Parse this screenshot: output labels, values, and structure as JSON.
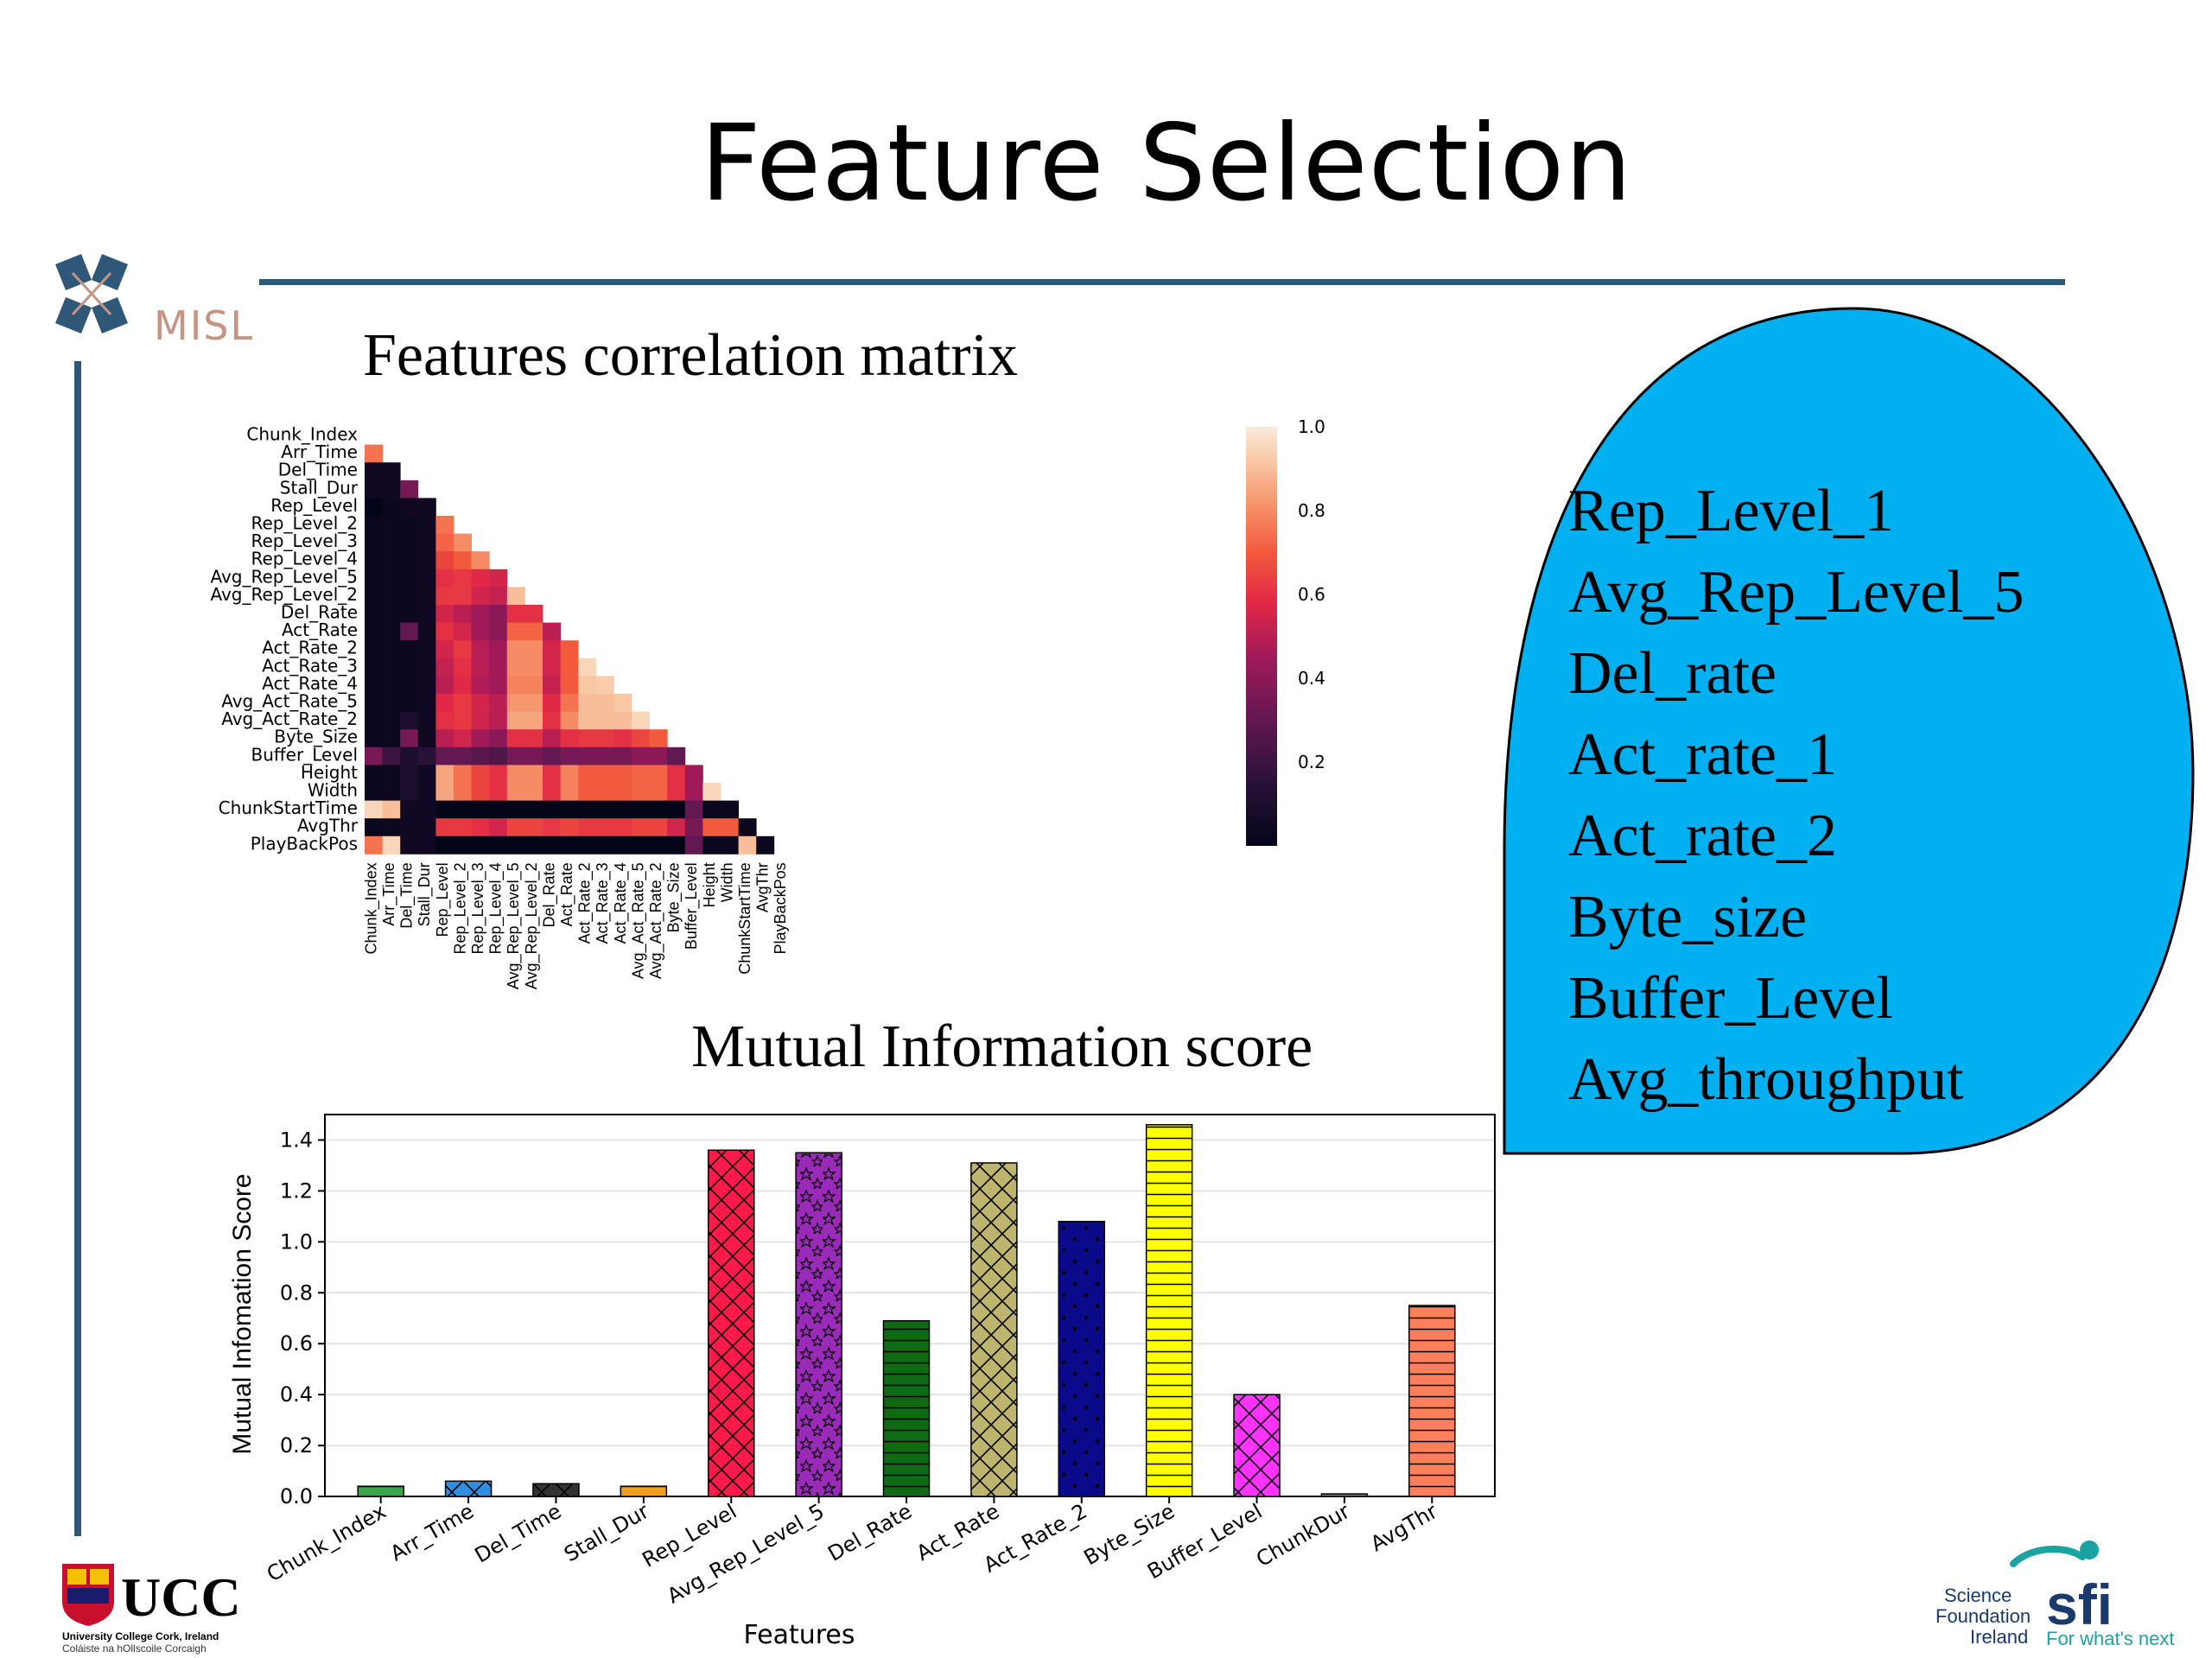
{
  "slide": {
    "title": "Feature Selection",
    "misl_logo_text": "MISL",
    "ucc_logo_text": "UCC",
    "ucc_subtitle_1": "University College Cork, Ireland",
    "ucc_subtitle_2": "Coláiste na hOllscoile Corcaigh",
    "sfi_line1": "Science",
    "sfi_line2": "Foundation",
    "sfi_line3": "Ireland",
    "sfi_mark": "sfi",
    "sfi_tagline": "For what's next",
    "accent_color": "#2f5878"
  },
  "selected_features": {
    "fill_color": "#00b0f0",
    "items": [
      "Rep_Level_1",
      "Avg_Rep_Level_5",
      "Del_rate",
      "Act_rate_1",
      "Act_rate_2",
      "Byte_size",
      "Buffer_Level",
      "Avg_throughput"
    ]
  },
  "chart_data": [
    {
      "type": "heatmap",
      "title": "Features correlation matrix",
      "labels": [
        "Chunk_Index",
        "Arr_Time",
        "Del_Time",
        "Stall_Dur",
        "Rep_Level",
        "Rep_Level_2",
        "Rep_Level_3",
        "Rep_Level_4",
        "Avg_Rep_Level_5",
        "Avg_Rep_Level_2",
        "Del_Rate",
        "Act_Rate",
        "Act_Rate_2",
        "Act_Rate_3",
        "Act_Rate_4",
        "Avg_Act_Rate_5",
        "Avg_Act_Rate_2",
        "Byte_Size",
        "Buffer_Level",
        "Height",
        "Width",
        "ChunkStartTime",
        "AvgThr",
        "PlayBackPos"
      ],
      "colorbar": {
        "ticks": [
          1.0,
          0.8,
          0.6,
          0.4,
          0.2
        ],
        "range": [
          0.0,
          1.0
        ]
      },
      "values": [
        [],
        [
          0.75
        ],
        [
          0.05,
          0.05
        ],
        [
          0.05,
          0.05,
          0.35
        ],
        [
          0.0,
          0.03,
          0.05,
          0.05
        ],
        [
          0.02,
          0.03,
          0.03,
          0.05,
          0.75
        ],
        [
          0.02,
          0.03,
          0.03,
          0.05,
          0.72,
          0.8
        ],
        [
          0.02,
          0.03,
          0.03,
          0.05,
          0.65,
          0.7,
          0.8
        ],
        [
          0.02,
          0.03,
          0.03,
          0.05,
          0.6,
          0.62,
          0.58,
          0.55
        ],
        [
          0.02,
          0.03,
          0.03,
          0.05,
          0.62,
          0.62,
          0.55,
          0.52,
          0.9
        ],
        [
          0.02,
          0.03,
          0.03,
          0.05,
          0.55,
          0.5,
          0.45,
          0.4,
          0.6,
          0.6
        ],
        [
          0.02,
          0.03,
          0.3,
          0.05,
          0.6,
          0.55,
          0.45,
          0.4,
          0.72,
          0.72,
          0.5
        ],
        [
          0.02,
          0.03,
          0.03,
          0.05,
          0.55,
          0.62,
          0.5,
          0.45,
          0.8,
          0.8,
          0.55,
          0.7
        ],
        [
          0.02,
          0.03,
          0.03,
          0.05,
          0.52,
          0.6,
          0.5,
          0.45,
          0.8,
          0.8,
          0.55,
          0.7,
          0.95
        ],
        [
          0.02,
          0.03,
          0.03,
          0.05,
          0.5,
          0.58,
          0.48,
          0.45,
          0.78,
          0.78,
          0.52,
          0.7,
          0.92,
          0.93
        ],
        [
          0.02,
          0.03,
          0.03,
          0.05,
          0.58,
          0.62,
          0.55,
          0.5,
          0.82,
          0.82,
          0.58,
          0.75,
          0.9,
          0.9,
          0.92
        ],
        [
          0.02,
          0.03,
          0.1,
          0.05,
          0.6,
          0.62,
          0.55,
          0.5,
          0.85,
          0.85,
          0.6,
          0.8,
          0.9,
          0.9,
          0.9,
          0.95
        ],
        [
          0.02,
          0.03,
          0.35,
          0.05,
          0.5,
          0.55,
          0.45,
          0.4,
          0.6,
          0.6,
          0.5,
          0.6,
          0.62,
          0.62,
          0.6,
          0.65,
          0.7
        ],
        [
          0.35,
          0.2,
          0.1,
          0.15,
          0.3,
          0.3,
          0.28,
          0.25,
          0.35,
          0.35,
          0.3,
          0.35,
          0.35,
          0.35,
          0.35,
          0.4,
          0.4,
          0.3
        ],
        [
          0.02,
          0.03,
          0.1,
          0.05,
          0.85,
          0.75,
          0.65,
          0.6,
          0.8,
          0.8,
          0.6,
          0.78,
          0.7,
          0.7,
          0.7,
          0.72,
          0.72,
          0.6,
          0.45
        ],
        [
          0.02,
          0.03,
          0.1,
          0.05,
          0.85,
          0.75,
          0.65,
          0.6,
          0.8,
          0.8,
          0.6,
          0.78,
          0.7,
          0.7,
          0.7,
          0.72,
          0.72,
          0.6,
          0.45,
          0.95
        ],
        [
          0.95,
          0.9,
          0.05,
          0.05,
          0.0,
          0.0,
          0.0,
          0.0,
          0.0,
          0.0,
          0.0,
          0.0,
          0.0,
          0.0,
          0.0,
          0.0,
          0.0,
          0.0,
          0.3,
          0.02,
          0.02
        ],
        [
          0.02,
          0.03,
          0.05,
          0.05,
          0.62,
          0.62,
          0.6,
          0.55,
          0.65,
          0.65,
          0.62,
          0.65,
          0.62,
          0.62,
          0.62,
          0.65,
          0.65,
          0.55,
          0.35,
          0.7,
          0.7,
          0.02
        ],
        [
          0.75,
          0.95,
          0.05,
          0.05,
          0.0,
          0.0,
          0.0,
          0.0,
          0.0,
          0.0,
          0.0,
          0.0,
          0.0,
          0.0,
          0.0,
          0.0,
          0.0,
          0.0,
          0.3,
          0.02,
          0.02,
          0.9,
          0.02
        ]
      ]
    },
    {
      "type": "bar",
      "title": "Mutual Information score",
      "xlabel": "Features",
      "ylabel": "Mutual Infomation Score",
      "ylim": [
        0.0,
        1.5
      ],
      "yticks": [
        "0.0",
        "0.2",
        "0.4",
        "0.6",
        "0.8",
        "1.0",
        "1.2",
        "1.4"
      ],
      "grid": true,
      "categories": [
        "Chunk_Index",
        "Arr_Time",
        "Del_Time",
        "Stall_Dur",
        "Rep_Level",
        "Avg_Rep_Level_5",
        "Del_Rate",
        "Act_Rate",
        "Act_Rate_2",
        "Byte_Size",
        "Buffer_Level",
        "ChunkDur",
        "AvgThr"
      ],
      "values": [
        0.04,
        0.06,
        0.05,
        0.04,
        1.36,
        1.35,
        0.69,
        1.31,
        1.08,
        1.46,
        0.4,
        0.01,
        0.75
      ],
      "colors": [
        "#3aa64a",
        "#2f8fe0",
        "#333333",
        "#f0a020",
        "#ff1a4a",
        "#9a2ab8",
        "#0f6a14",
        "#bdb56e",
        "#0a0a8a",
        "#ffff00",
        "#ff33ff",
        "#808080",
        "#ff7f5c"
      ],
      "patterns": [
        "hline",
        "cross",
        "cross",
        "hline",
        "cross",
        "star",
        "hline",
        "cross",
        "dot",
        "hline",
        "cross",
        "hline",
        "hline"
      ]
    }
  ]
}
